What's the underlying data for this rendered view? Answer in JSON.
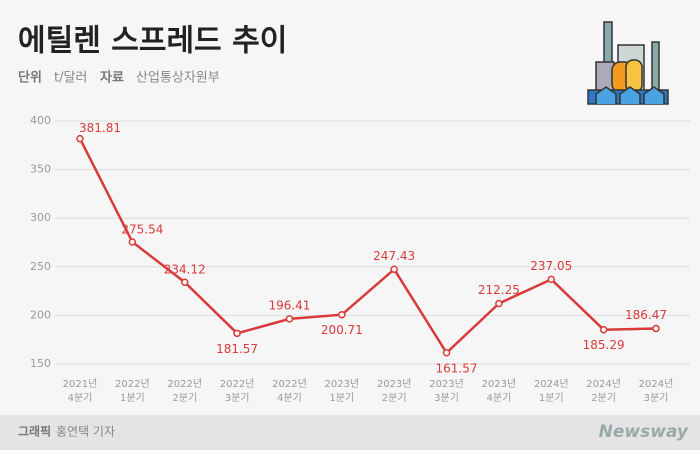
{
  "chart_data": {
    "type": "line",
    "title": "에틸렌 스프레드 추이",
    "unit_label": "단위",
    "unit": "t/달러",
    "source_label": "자료",
    "source": "산업통상자원부",
    "categories": [
      [
        "2021년",
        "4분기"
      ],
      [
        "2022년",
        "1분기"
      ],
      [
        "2022년",
        "2분기"
      ],
      [
        "2022년",
        "3분기"
      ],
      [
        "2022년",
        "4분기"
      ],
      [
        "2023년",
        "1분기"
      ],
      [
        "2023년",
        "2분기"
      ],
      [
        "2023년",
        "3분기"
      ],
      [
        "2023년",
        "4분기"
      ],
      [
        "2024년",
        "1분기"
      ],
      [
        "2024년",
        "2분기"
      ],
      [
        "2024년",
        "3분기"
      ]
    ],
    "values": [
      381.81,
      275.54,
      234.12,
      181.57,
      196.41,
      200.71,
      247.43,
      161.57,
      212.25,
      237.05,
      185.29,
      186.47
    ],
    "color": "#d93a3a",
    "ylim": [
      150,
      400
    ],
    "yticks": [
      150,
      200,
      250,
      300,
      350,
      400
    ],
    "grid": true,
    "credit_label": "그래픽",
    "credit": "홍연택 기자",
    "logo": "Newsway"
  }
}
